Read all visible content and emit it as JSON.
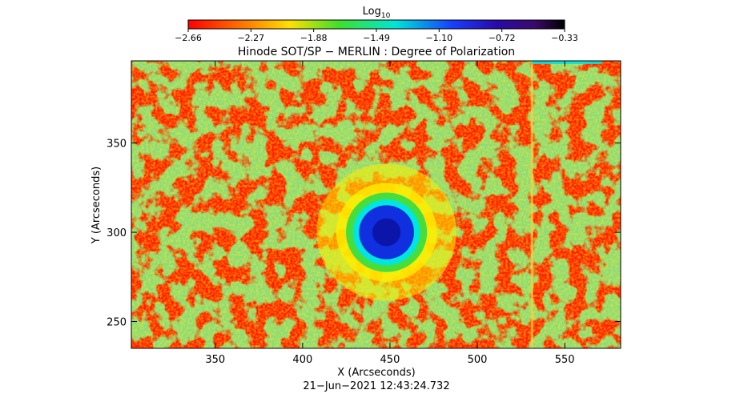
{
  "chart_data": {
    "type": "heatmap",
    "title": "Hinode SOT/SP − MERLIN : Degree of Polarization",
    "xlabel": "X (Arcseconds)",
    "ylabel": "Y (Arcseconds)",
    "timestamp": "21−Jun−2021 12:43:24.732",
    "xlim": [
      302,
      582
    ],
    "ylim": [
      235,
      396
    ],
    "xticks": [
      350,
      400,
      450,
      500,
      550
    ],
    "yticks": [
      250,
      300,
      350
    ],
    "grid": false,
    "colorbar": {
      "label_base": "Log",
      "label_sub": "10",
      "range": [
        -2.66,
        -0.33
      ],
      "ticks": [
        "−2.66",
        "−2.27",
        "−1.88",
        "−1.49",
        "−1.10",
        "−0.72",
        "−0.33"
      ],
      "colormap": "rainbow (red → yellow → green → cyan → blue → purple → black)"
    },
    "features": {
      "spot_center": [
        448,
        300
      ],
      "spot_core_radius": 9,
      "ring_outer_radius": 40,
      "slit_artifact_x": 531
    }
  },
  "colors": {
    "background_field": "#ff1a00",
    "ring_yellow": "#ffee00",
    "ring_green": "#33dd44",
    "ring_cyan": "#00e5e0",
    "core_blue": "#1030e0",
    "core_dark": "#0a10a0"
  }
}
